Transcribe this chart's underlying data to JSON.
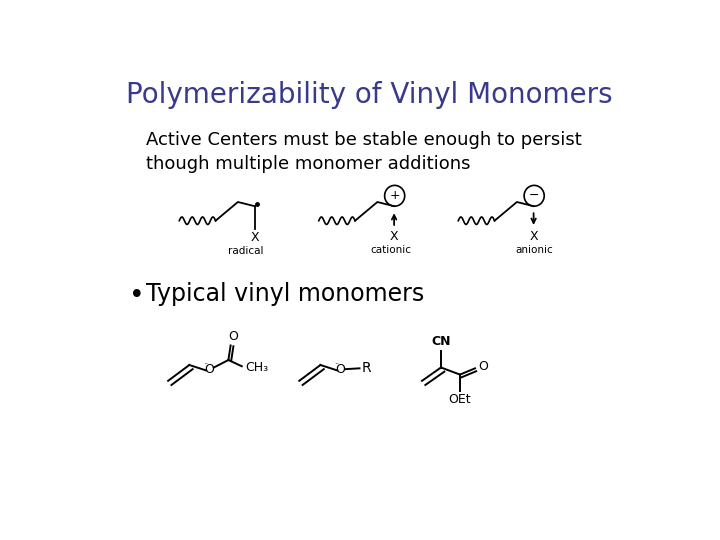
{
  "title": "Polymerizability of Vinyl Monomers",
  "title_color": "#3a3a8c",
  "title_fontsize": 20,
  "body_text1": "Active Centers must be stable enough to persist\nthough multiple monomer additions",
  "body_fontsize": 13,
  "bullet_text": "Typical vinyl monomers",
  "bullet_fontsize": 17,
  "background_color": "#ffffff",
  "text_color": "#000000",
  "label_radical": "radical",
  "label_cationic": "cationic",
  "label_anionic": "anionic"
}
